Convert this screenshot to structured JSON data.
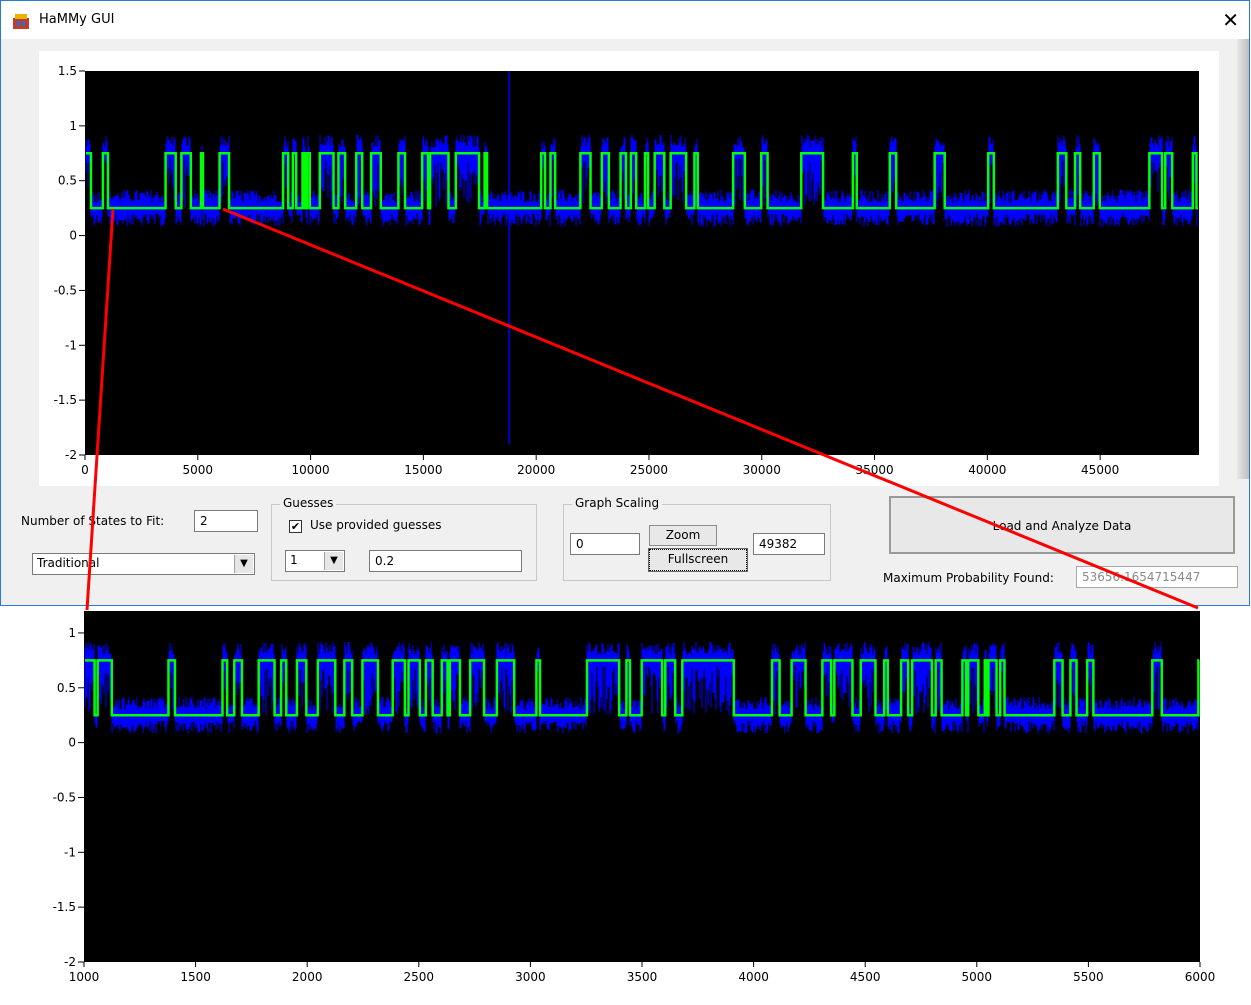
{
  "window": {
    "title": "HaMMy GUI",
    "close_glyph": "✕",
    "icon": "hammy-app-icon"
  },
  "main_chart": {
    "y_ticks": [
      "1.5",
      "1",
      "0.5",
      "0",
      "-0.5",
      "-1",
      "-1.5",
      "-2"
    ],
    "x_ticks": [
      "0",
      "5000",
      "10000",
      "15000",
      "20000",
      "25000",
      "30000",
      "35000",
      "40000",
      "45000"
    ]
  },
  "controls": {
    "states_label": "Number of States to Fit:",
    "states_value": "2",
    "method_value": "Traditional",
    "guesses_title": "Guesses",
    "use_guesses_label": "Use provided guesses",
    "use_guesses_checked": true,
    "guess_index_value": "1",
    "guess_value": "0.2",
    "scaling_title": "Graph Scaling",
    "scale_min": "0",
    "scale_max": "49382",
    "zoom_label": "Zoom",
    "fullscreen_label": "Fullscreen",
    "load_label": "Load and Analyze Data",
    "max_prob_label": "Maximum Probability Found:",
    "max_prob_value": "53656.1654715447"
  },
  "zoom_chart": {
    "y_ticks": [
      "1",
      "0.5",
      "0",
      "-0.5",
      "-1",
      "-1.5",
      "-2"
    ],
    "x_ticks": [
      "1000",
      "1500",
      "2000",
      "2500",
      "3000",
      "3500",
      "4000",
      "4500",
      "5000",
      "5500",
      "6000"
    ]
  },
  "colors": {
    "data": "#0000ff",
    "fit": "#00ff00",
    "annotation": "#ff0000",
    "plot_bg": "#000000"
  },
  "chart_data": [
    {
      "type": "line",
      "xlim": [
        0,
        49382
      ],
      "ylim": [
        -2,
        1.5
      ],
      "series": [
        {
          "values": [
            0.25,
            0.75
          ]
        }
      ],
      "x_ticks": [
        0,
        5000,
        10000,
        15000,
        20000,
        25000,
        30000,
        35000,
        40000,
        45000
      ],
      "y_ticks": [
        1.5,
        1,
        0.5,
        0,
        -0.5,
        -1,
        -1.5,
        -2
      ]
    },
    {
      "type": "line",
      "xlim": [
        1000,
        6000
      ],
      "ylim": [
        -2,
        1.2
      ],
      "series": [
        {
          "values": [
            0.25,
            0.75
          ]
        }
      ],
      "x_ticks": [
        1000,
        1500,
        2000,
        2500,
        3000,
        3500,
        4000,
        4500,
        5000,
        5500,
        6000
      ],
      "y_ticks": [
        1,
        0.5,
        0,
        -0.5,
        -1,
        -1.5,
        -2
      ]
    }
  ]
}
